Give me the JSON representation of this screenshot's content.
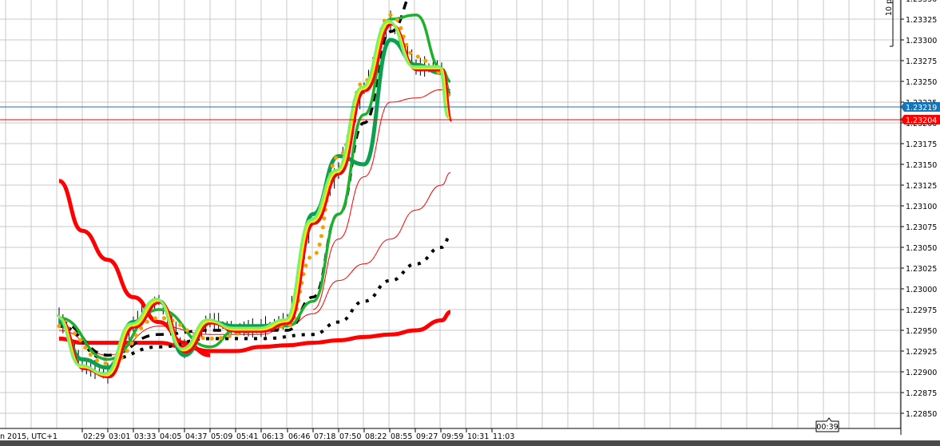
{
  "chart_data": {
    "type": "line",
    "title": "",
    "xlabel": "",
    "ylabel": "",
    "axis_left_label": "n 2015, UTC+1",
    "x_ticks": [
      "02:29",
      "03:01",
      "03:33",
      "04:05",
      "04:37",
      "05:09",
      "05:41",
      "06:13",
      "06:46",
      "07:18",
      "07:50",
      "08:22",
      "08:55",
      "09:27",
      "09:59",
      "10:31",
      "11:03"
    ],
    "y_ticks": [
      "1.23325",
      "1.23300",
      "1.23275",
      "1.23250",
      "1.23225",
      "1.23200",
      "1.23175",
      "1.23150",
      "1.23125",
      "1.23100",
      "1.23075",
      "1.23050",
      "1.23025",
      "1.23000",
      "1.22975",
      "1.22950",
      "1.22925",
      "1.22900",
      "1.22875",
      "1.22850"
    ],
    "ylim": [
      1.2284,
      1.2335
    ],
    "grid": true,
    "price_lines": [
      {
        "name": "ask",
        "value": "1.23219",
        "color": "#1874b8"
      },
      {
        "name": "bid",
        "value": "1.23204",
        "color": "#ff0000"
      }
    ],
    "countdown": "00:39",
    "scale_label": "10 pi",
    "series": [
      {
        "name": "price-bars",
        "color": "#000000",
        "style": "bars",
        "x": [
          "02:00",
          "02:29",
          "03:01",
          "03:33",
          "04:05",
          "04:37",
          "05:09",
          "05:41",
          "06:13",
          "06:46",
          "07:18",
          "07:50",
          "08:22",
          "08:55",
          "09:27",
          "09:59",
          "10:10"
        ],
        "values": [
          1.22965,
          1.22905,
          1.22895,
          1.22955,
          1.22985,
          1.22925,
          1.2296,
          1.2295,
          1.2295,
          1.2296,
          1.2308,
          1.2314,
          1.2324,
          1.2332,
          1.23265,
          1.23265,
          1.23204
        ]
      },
      {
        "name": "MA-slow-thick-red",
        "color": "#ff0000",
        "style": "thick",
        "x": [
          "02:00",
          "02:29",
          "03:01",
          "03:33",
          "04:05",
          "04:37",
          "05:09",
          "05:41",
          "06:13",
          "06:46",
          "07:18",
          "07:50",
          "08:22",
          "08:55",
          "09:27",
          "09:59",
          "10:10"
        ],
        "values": [
          1.2294,
          1.22935,
          1.22935,
          1.22935,
          1.22935,
          1.2293,
          1.22925,
          1.22925,
          1.2293,
          1.22932,
          1.22935,
          1.22938,
          1.22942,
          1.22945,
          1.2295,
          1.22962,
          1.22972
        ]
      },
      {
        "name": "MA-descending-thick-red",
        "color": "#ff0000",
        "style": "thick",
        "x": [
          "02:00",
          "02:29",
          "03:01",
          "03:33",
          "04:05",
          "04:37",
          "05:09"
        ],
        "values": [
          1.2313,
          1.2307,
          1.23035,
          1.2299,
          1.2296,
          1.22935,
          1.2292
        ]
      },
      {
        "name": "MA-dotted-black",
        "color": "#000000",
        "style": "dotted",
        "x": [
          "02:00",
          "03:01",
          "04:05",
          "05:09",
          "06:13",
          "07:18",
          "07:50",
          "08:22",
          "08:55",
          "09:27",
          "09:59",
          "10:10"
        ],
        "values": [
          1.22955,
          1.22915,
          1.2293,
          1.2294,
          1.2294,
          1.22945,
          1.2296,
          1.22985,
          1.2301,
          1.2303,
          1.2305,
          1.23063
        ]
      },
      {
        "name": "MA-thin-red",
        "color": "#ff0000",
        "style": "thin",
        "x": [
          "02:00",
          "03:01",
          "04:05",
          "05:09",
          "06:13",
          "06:46",
          "07:18",
          "07:50",
          "08:22",
          "08:55",
          "09:27",
          "09:59",
          "10:10"
        ],
        "values": [
          1.2295,
          1.2292,
          1.22955,
          1.22945,
          1.22945,
          1.22955,
          1.2297,
          1.2301,
          1.2303,
          1.2306,
          1.23095,
          1.23125,
          1.2314
        ]
      },
      {
        "name": "MA-dashed-black",
        "color": "#000000",
        "style": "dashed",
        "x": [
          "02:00",
          "03:01",
          "04:05",
          "05:09",
          "06:13",
          "06:46",
          "07:18",
          "07:50",
          "08:22",
          "08:55",
          "09:27"
        ],
        "values": [
          1.2296,
          1.2292,
          1.22945,
          1.2295,
          1.2295,
          1.2295,
          1.2299,
          1.2309,
          1.232,
          1.2331,
          1.2336
        ]
      },
      {
        "name": "MA-thin-red-2",
        "color": "#ff0000",
        "style": "thin",
        "x": [
          "07:18",
          "07:50",
          "08:22",
          "08:55",
          "09:27",
          "09:59",
          "10:10"
        ],
        "values": [
          1.22975,
          1.2306,
          1.23135,
          1.23225,
          1.2323,
          1.2324,
          1.2324
        ]
      },
      {
        "name": "MA-green-slow",
        "color": "#1db12b",
        "style": "medium",
        "x": [
          "02:00",
          "03:01",
          "04:05",
          "05:09",
          "05:41",
          "06:13",
          "06:46",
          "07:18",
          "07:50",
          "08:22",
          "08:55",
          "09:27",
          "09:59",
          "10:10"
        ],
        "values": [
          1.22965,
          1.22915,
          1.22975,
          1.2293,
          1.2295,
          1.22955,
          1.22955,
          1.22985,
          1.2309,
          1.2321,
          1.23325,
          1.2333,
          1.23265,
          1.2325
        ]
      },
      {
        "name": "MA-darkgreen",
        "color": "#0aa050",
        "style": "thick",
        "x": [
          "02:00",
          "02:29",
          "03:01",
          "03:33",
          "04:05",
          "04:37",
          "05:09",
          "05:41",
          "06:13",
          "06:46",
          "07:18",
          "07:50",
          "08:22",
          "08:55",
          "09:27",
          "09:59",
          "10:10"
        ],
        "values": [
          1.2296,
          1.22915,
          1.22905,
          1.2296,
          1.22985,
          1.2292,
          1.2296,
          1.22955,
          1.22955,
          1.2296,
          1.2309,
          1.2316,
          1.2315,
          1.233,
          1.2327,
          1.2326,
          1.23235
        ]
      },
      {
        "name": "MA-orange-dots",
        "color": "#f5a000",
        "style": "dots",
        "x": [
          "02:00",
          "03:01",
          "04:05",
          "05:09",
          "06:13",
          "06:46",
          "07:18",
          "07:50",
          "08:22",
          "08:55",
          "09:27",
          "09:59",
          "10:10"
        ],
        "values": [
          1.22955,
          1.2291,
          1.22965,
          1.2294,
          1.2295,
          1.22955,
          1.2304,
          1.2316,
          1.2325,
          1.2333,
          1.2328,
          1.2326,
          1.2323
        ]
      }
    ]
  },
  "chart": {
    "ask_label": "1.23219",
    "bid_label": "1.23204",
    "countdown_label": "00:39",
    "scale_label": "10 pi",
    "date_label": "n 2015, UTC+1"
  }
}
